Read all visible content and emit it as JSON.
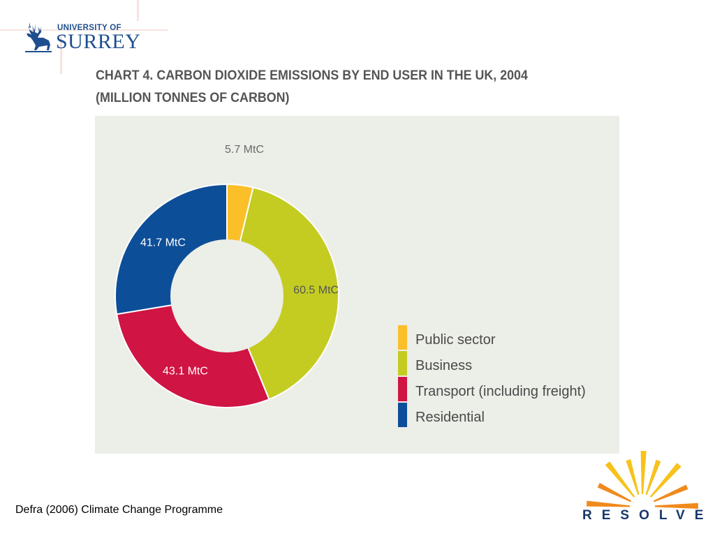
{
  "logo": {
    "small_text": "UNIVERSITY OF",
    "big_text": "SURREY",
    "icon": "stag-icon",
    "color": "#1f4f8f"
  },
  "chart_data": {
    "type": "pie",
    "style": "donut",
    "title_line1": "CHART 4. CARBON DIOXIDE EMISSIONS BY END USER IN THE UK, 2004",
    "title_line2": "(MILLION TONNES OF CARBON)",
    "unit": "MtC",
    "background": "#eceee8",
    "legend_position": "bottom-right",
    "slices": [
      {
        "name": "Public sector",
        "value": 5.7,
        "label": "5.7 MtC",
        "color": "#fbbf2a",
        "label_color": "#6b6b6b"
      },
      {
        "name": "Business",
        "value": 60.5,
        "label": "60.5 MtC",
        "color": "#c4cc22",
        "label_color": "#555555"
      },
      {
        "name": "Transport (including freight)",
        "value": 43.1,
        "label": "43.1 MtC",
        "color": "#d01443",
        "label_color": "#ffffff"
      },
      {
        "name": "Residential",
        "value": 41.7,
        "label": "41.7 MtC",
        "color": "#0d4e98",
        "label_color": "#ffffff"
      }
    ]
  },
  "source": "Defra (2006) Climate Change Programme",
  "resolve_logo": {
    "text": "RESOLVE",
    "icon": "sunburst-icon",
    "ray_color_dark": "#f08a1c",
    "ray_color_light": "#f7c21c",
    "text_color": "#17376a"
  }
}
